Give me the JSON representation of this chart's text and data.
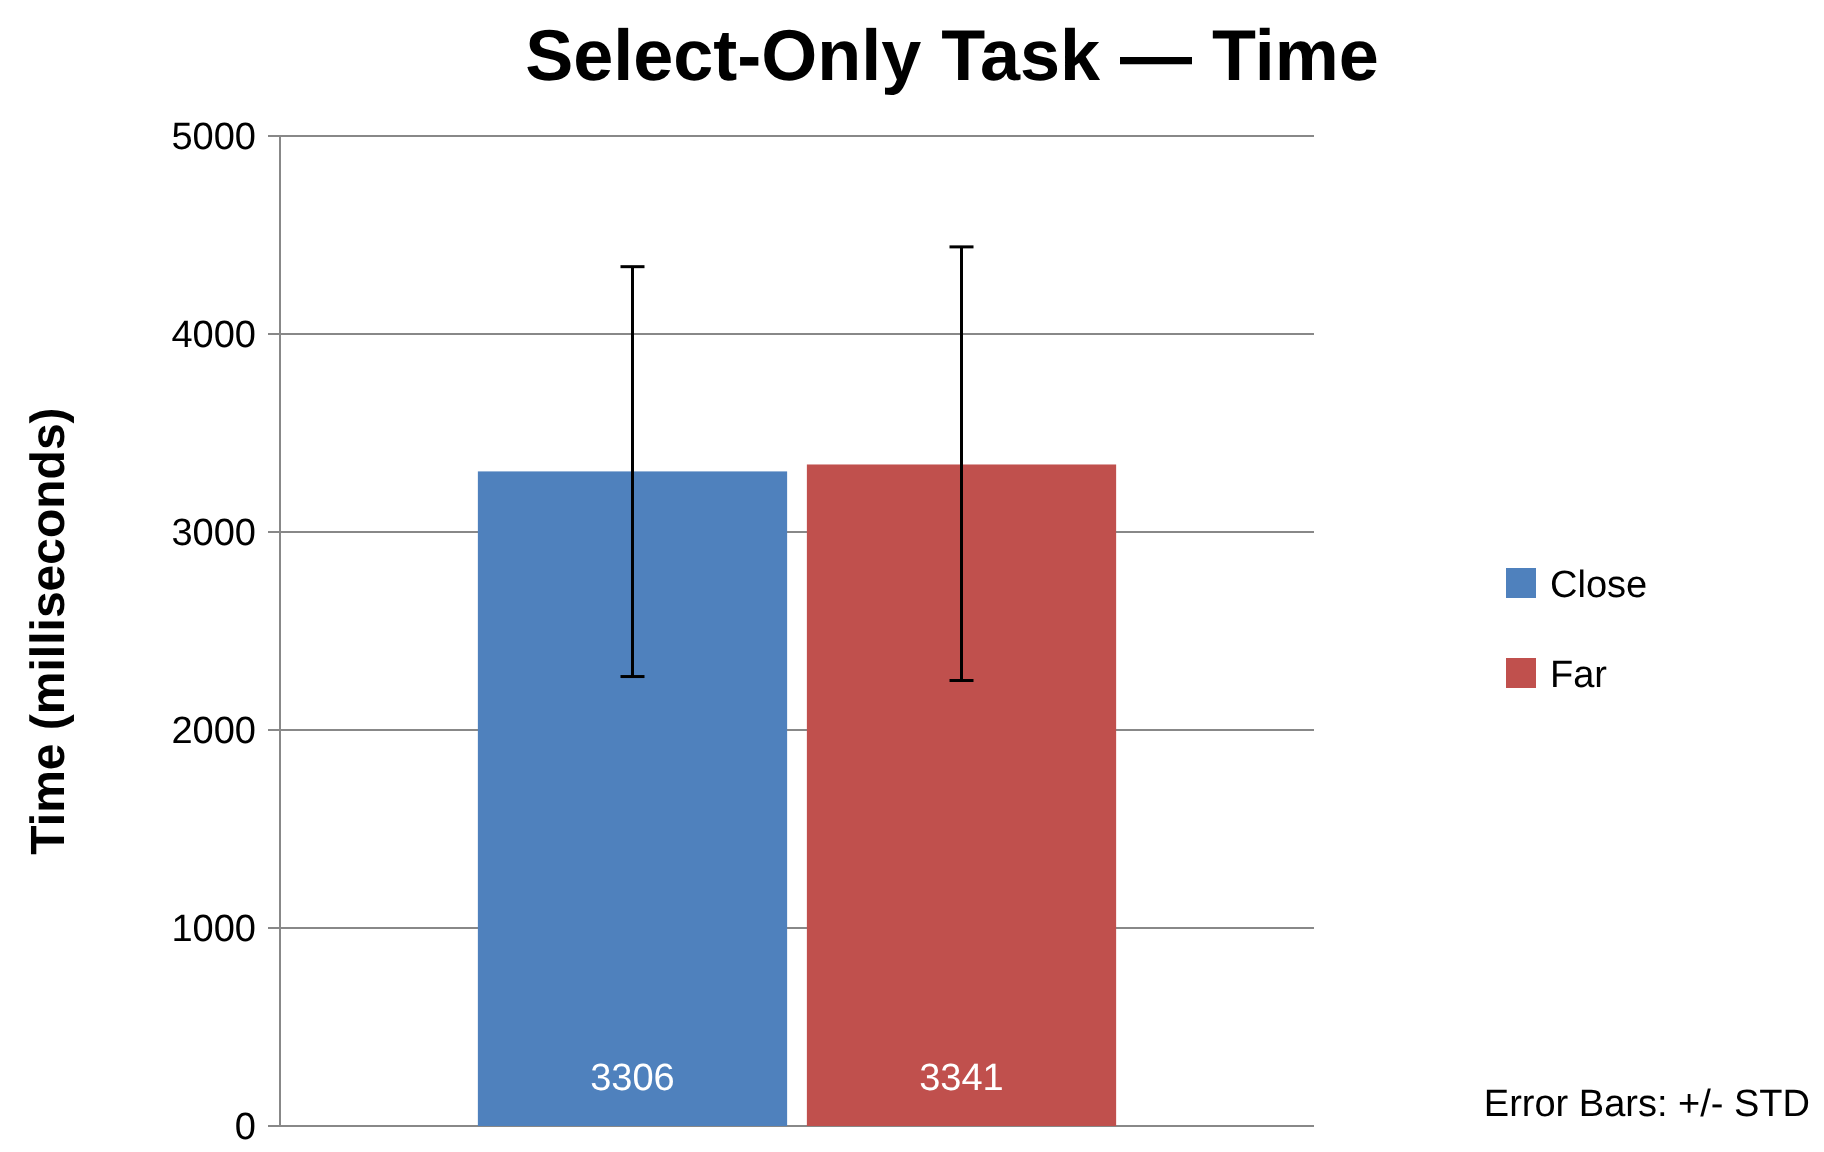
{
  "chart_data": {
    "type": "bar",
    "title": "Select-Only Task — Time",
    "ylabel": "Time (milliseconds)",
    "categories": [
      null
    ],
    "series": [
      {
        "name": "Close",
        "color": "#4f81bd",
        "values": [
          3306
        ],
        "errors": [
          [
            2270,
            4340
          ]
        ]
      },
      {
        "name": "Far",
        "color": "#c0504d",
        "values": [
          3341
        ],
        "errors": [
          [
            2250,
            4440
          ]
        ]
      }
    ],
    "ylim": [
      0,
      5000
    ],
    "yticks": [
      0,
      1000,
      2000,
      3000,
      4000,
      5000
    ],
    "grid": "y",
    "legend": "right",
    "data_labels": true,
    "annotations": [
      "Error Bars: +/- STD"
    ]
  }
}
